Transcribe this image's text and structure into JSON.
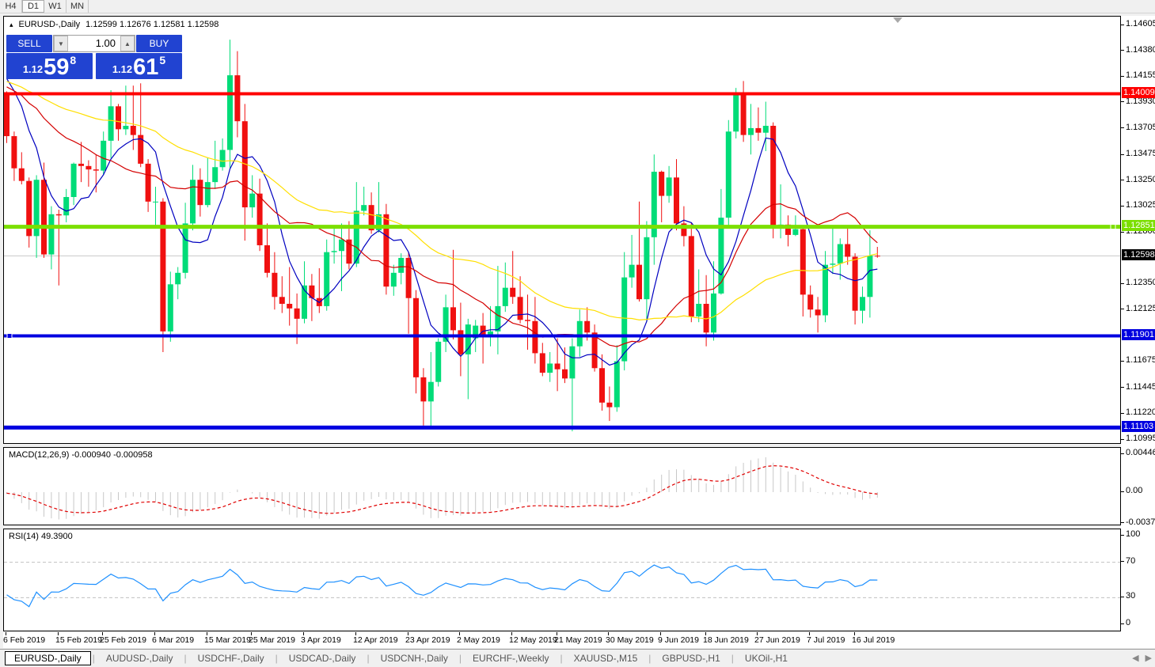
{
  "toolbar": {
    "timeframes": [
      {
        "label": "H4",
        "active": false
      },
      {
        "label": "D1",
        "active": true
      },
      {
        "label": "W1",
        "active": false
      },
      {
        "label": "MN",
        "active": false
      }
    ]
  },
  "chart_header": {
    "collapse_icon": "▴",
    "symbol_period": "EURUSD-,Daily",
    "ohlc_text": "1.12599 1.12676 1.12581 1.12598"
  },
  "trade_panel": {
    "sell_label": "SELL",
    "buy_label": "BUY",
    "volume": "1.00",
    "down_icon": "▼",
    "up_icon": "▲",
    "sell_price": {
      "prefix": "1.12",
      "big": "59",
      "sup": "8"
    },
    "buy_price": {
      "prefix": "1.12",
      "big": "61",
      "sup": "5"
    },
    "accent_color": "#2143D1"
  },
  "indicator_labels": {
    "macd": "MACD(12,26,9) -0.000940 -0.000958",
    "rsi": "RSI(14) 49.3900"
  },
  "price_axis": {
    "labels": [
      "1.14605",
      "1.14380",
      "1.14155",
      "1.13930",
      "1.13705",
      "1.13475",
      "1.13250",
      "1.13025",
      "1.12800",
      "1.12350",
      "1.12125",
      "1.11675",
      "1.11445",
      "1.11220",
      "1.10995"
    ],
    "macd_labels": [
      "0.004465",
      "0.00",
      "-0.003715"
    ],
    "rsi_labels": [
      "100",
      "70",
      "30",
      "0"
    ]
  },
  "date_axis": {
    "labels": [
      {
        "t": "6 Feb 2019",
        "i": 0
      },
      {
        "t": "15 Feb 2019",
        "i": 7
      },
      {
        "t": "25 Feb 2019",
        "i": 13
      },
      {
        "t": "6 Mar 2019",
        "i": 20
      },
      {
        "t": "15 Mar 2019",
        "i": 27
      },
      {
        "t": "25 Mar 2019",
        "i": 33
      },
      {
        "t": "3 Apr 2019",
        "i": 40
      },
      {
        "t": "12 Apr 2019",
        "i": 47
      },
      {
        "t": "23 Apr 2019",
        "i": 54
      },
      {
        "t": "2 May 2019",
        "i": 61
      },
      {
        "t": "12 May 2019",
        "i": 68
      },
      {
        "t": "21 May 2019",
        "i": 74
      },
      {
        "t": "30 May 2019",
        "i": 81
      },
      {
        "t": "9 Jun 2019",
        "i": 88
      },
      {
        "t": "18 Jun 2019",
        "i": 94
      },
      {
        "t": "27 Jun 2019",
        "i": 101
      },
      {
        "t": "7 Jul 2019",
        "i": 108
      },
      {
        "t": "16 Jul 2019",
        "i": 114
      }
    ]
  },
  "tabs": {
    "items": [
      "EURUSD-,Daily",
      "AUDUSD-,Daily",
      "USDCHF-,Daily",
      "USDCAD-,Daily",
      "USDCNH-,Daily",
      "EURCHF-,Weekly",
      "XAUUSD-,M15",
      "GBPUSD-,H1",
      "UKOil-,H1"
    ],
    "active_index": 0,
    "scroll_left_icon": "◀",
    "scroll_right_icon": "▶"
  },
  "chart_data": {
    "type": "candlestick",
    "symbol": "EURUSD-",
    "timeframe": "Daily",
    "title": "EURUSD-,Daily",
    "ohlc_current": {
      "open": 1.12599,
      "high": 1.12676,
      "low": 1.12581,
      "close": 1.12598
    },
    "price_range": {
      "top": 1.14605,
      "bottom": 1.10995
    },
    "up_color": "#00DC78",
    "down_color": "#F01010",
    "current_price": {
      "value": 1.12598,
      "label": "1.12598",
      "line_color": "#C8C8C8",
      "badge_bg": "#000000"
    },
    "hlines": [
      {
        "price": 1.14009,
        "label": "1.14009",
        "color": "#FF0000",
        "width": 4
      },
      {
        "price": 1.12851,
        "label": "1.12851",
        "color": "#7CDF00",
        "width": 5,
        "handle": true
      },
      {
        "price": 1.11901,
        "label": "1.11901",
        "color": "#0000E0",
        "width": 4,
        "handle": true
      },
      {
        "price": 1.11103,
        "label": "1.11103",
        "color": "#0000E0",
        "width": 5
      }
    ],
    "moving_averages": [
      {
        "period": 7,
        "color": "#0000C0"
      },
      {
        "period": 18,
        "color": "#D40000"
      },
      {
        "period": 40,
        "color": "#FFDF00"
      }
    ],
    "macd": {
      "fast": 12,
      "slow": 26,
      "signal": 9,
      "hist_color": "#C8C8C8",
      "signal_color": "#E00000",
      "value": -0.00094,
      "signal_value": -0.000958,
      "scale_top": 0.004465,
      "scale_bottom": -0.003715
    },
    "rsi": {
      "period": 14,
      "color": "#1E90FF",
      "value": 49.39,
      "levels": [
        70,
        30
      ]
    },
    "prehistory_closes": [
      1.1436,
      1.1428,
      1.1432,
      1.1425,
      1.1418,
      1.1422,
      1.143,
      1.1426,
      1.1419,
      1.1412,
      1.1418,
      1.1424,
      1.1416,
      1.1408,
      1.1402,
      1.141,
      1.1416,
      1.1409,
      1.1403,
      1.1398,
      1.1405,
      1.1412,
      1.1407,
      1.1399,
      1.1394,
      1.14,
      1.1408,
      1.1415,
      1.141,
      1.1404,
      1.1398,
      1.1392,
      1.1399,
      1.1406,
      1.1412,
      1.1418,
      1.1425,
      1.1432,
      1.144,
      1.1408
    ],
    "candles": [
      [
        1.1401,
        1.1403,
        1.1358,
        1.1364
      ],
      [
        1.1364,
        1.1368,
        1.1325,
        1.1336
      ],
      [
        1.1336,
        1.135,
        1.1322,
        1.1325
      ],
      [
        1.1325,
        1.1328,
        1.1267,
        1.1277
      ],
      [
        1.1277,
        1.133,
        1.1258,
        1.1326
      ],
      [
        1.1326,
        1.1341,
        1.1258,
        1.1261
      ],
      [
        1.1261,
        1.1303,
        1.1248,
        1.1296
      ],
      [
        1.1296,
        1.13,
        1.1234,
        1.1295
      ],
      [
        1.1295,
        1.1318,
        1.1289,
        1.1311
      ],
      [
        1.1311,
        1.1341,
        1.1304,
        1.134
      ],
      [
        1.134,
        1.1359,
        1.1324,
        1.1338
      ],
      [
        1.1338,
        1.1343,
        1.132,
        1.1335
      ],
      [
        1.1335,
        1.1348,
        1.1315,
        1.1334
      ],
      [
        1.1334,
        1.1368,
        1.133,
        1.136
      ],
      [
        1.136,
        1.1404,
        1.1345,
        1.139
      ],
      [
        1.139,
        1.1392,
        1.136,
        1.137
      ],
      [
        1.137,
        1.1408,
        1.1365,
        1.1373
      ],
      [
        1.1373,
        1.1408,
        1.1352,
        1.1365
      ],
      [
        1.1365,
        1.141,
        1.1337,
        1.134
      ],
      [
        1.134,
        1.1344,
        1.1298,
        1.1307
      ],
      [
        1.1307,
        1.132,
        1.1285,
        1.1307
      ],
      [
        1.1307,
        1.131,
        1.1176,
        1.1194
      ],
      [
        1.1194,
        1.1246,
        1.1185,
        1.1235
      ],
      [
        1.1235,
        1.125,
        1.1222,
        1.1245
      ],
      [
        1.1245,
        1.1306,
        1.124,
        1.1288
      ],
      [
        1.1288,
        1.1339,
        1.1282,
        1.1326
      ],
      [
        1.1326,
        1.1336,
        1.1294,
        1.1304
      ],
      [
        1.1304,
        1.1345,
        1.1302,
        1.1324
      ],
      [
        1.1324,
        1.136,
        1.1318,
        1.1337
      ],
      [
        1.1337,
        1.1362,
        1.1334,
        1.1352
      ],
      [
        1.1352,
        1.1448,
        1.1336,
        1.1417
      ],
      [
        1.1417,
        1.1438,
        1.1363,
        1.1377
      ],
      [
        1.1377,
        1.1392,
        1.1273,
        1.1302
      ],
      [
        1.1302,
        1.133,
        1.1293,
        1.1314
      ],
      [
        1.1314,
        1.1327,
        1.1264,
        1.1269
      ],
      [
        1.1269,
        1.1288,
        1.1241,
        1.1245
      ],
      [
        1.1245,
        1.1263,
        1.1213,
        1.1224
      ],
      [
        1.1224,
        1.1242,
        1.121,
        1.1218
      ],
      [
        1.1218,
        1.125,
        1.1199,
        1.1214
      ],
      [
        1.1214,
        1.1227,
        1.1183,
        1.1205
      ],
      [
        1.1205,
        1.1255,
        1.1201,
        1.1234
      ],
      [
        1.1234,
        1.1244,
        1.1203,
        1.1223
      ],
      [
        1.1223,
        1.1249,
        1.121,
        1.1216
      ],
      [
        1.1216,
        1.1274,
        1.1212,
        1.1263
      ],
      [
        1.1263,
        1.1284,
        1.1253,
        1.1264
      ],
      [
        1.1264,
        1.1288,
        1.1229,
        1.1274
      ],
      [
        1.1274,
        1.129,
        1.1248,
        1.1253
      ],
      [
        1.1253,
        1.1324,
        1.125,
        1.1299
      ],
      [
        1.1299,
        1.132,
        1.1295,
        1.1304
      ],
      [
        1.1304,
        1.1315,
        1.1279,
        1.1282
      ],
      [
        1.1282,
        1.1324,
        1.128,
        1.1296
      ],
      [
        1.1296,
        1.1305,
        1.1226,
        1.1233
      ],
      [
        1.1233,
        1.1252,
        1.1225,
        1.1245
      ],
      [
        1.1245,
        1.1262,
        1.1235,
        1.1258
      ],
      [
        1.1258,
        1.1263,
        1.1192,
        1.1223
      ],
      [
        1.1223,
        1.123,
        1.114,
        1.1154
      ],
      [
        1.1154,
        1.1162,
        1.1112,
        1.1133
      ],
      [
        1.1133,
        1.1176,
        1.1111,
        1.115
      ],
      [
        1.115,
        1.1188,
        1.1146,
        1.1185
      ],
      [
        1.1185,
        1.1226,
        1.1176,
        1.1215
      ],
      [
        1.1215,
        1.1265,
        1.1187,
        1.1195
      ],
      [
        1.1195,
        1.1219,
        1.1155,
        1.1174
      ],
      [
        1.1174,
        1.1205,
        1.1135,
        1.12
      ],
      [
        1.1188,
        1.1204,
        1.1176,
        1.1199
      ],
      [
        1.1199,
        1.121,
        1.1166,
        1.1191
      ],
      [
        1.1191,
        1.1216,
        1.1181,
        1.1194
      ],
      [
        1.1194,
        1.1251,
        1.1174,
        1.1216
      ],
      [
        1.1216,
        1.1254,
        1.1211,
        1.1232
      ],
      [
        1.1232,
        1.1264,
        1.1218,
        1.1224
      ],
      [
        1.1224,
        1.1242,
        1.1201,
        1.1204
      ],
      [
        1.1204,
        1.1226,
        1.1178,
        1.1203
      ],
      [
        1.1203,
        1.1224,
        1.1166,
        1.1175
      ],
      [
        1.1175,
        1.1184,
        1.1155,
        1.1158
      ],
      [
        1.1158,
        1.1176,
        1.115,
        1.1166
      ],
      [
        1.1166,
        1.1188,
        1.1142,
        1.1161
      ],
      [
        1.1161,
        1.118,
        1.1149,
        1.1153
      ],
      [
        1.1153,
        1.1188,
        1.1107,
        1.1181
      ],
      [
        1.1181,
        1.1213,
        1.1172,
        1.1203
      ],
      [
        1.1203,
        1.1215,
        1.1186,
        1.1193
      ],
      [
        1.1193,
        1.12,
        1.1159,
        1.1162
      ],
      [
        1.1162,
        1.1174,
        1.1125,
        1.1132
      ],
      [
        1.1132,
        1.1146,
        1.1116,
        1.1128
      ],
      [
        1.1128,
        1.1182,
        1.1124,
        1.1168
      ],
      [
        1.1168,
        1.1263,
        1.116,
        1.1241
      ],
      [
        1.1241,
        1.1278,
        1.1232,
        1.1252
      ],
      [
        1.1252,
        1.1307,
        1.122,
        1.1222
      ],
      [
        1.1222,
        1.129,
        1.1202,
        1.1276
      ],
      [
        1.1276,
        1.1348,
        1.1252,
        1.1333
      ],
      [
        1.1333,
        1.1334,
        1.1289,
        1.1312
      ],
      [
        1.1312,
        1.1338,
        1.1306,
        1.1328
      ],
      [
        1.1328,
        1.1344,
        1.1282,
        1.1288
      ],
      [
        1.1288,
        1.1303,
        1.1268,
        1.1277
      ],
      [
        1.1277,
        1.1289,
        1.1202,
        1.1207
      ],
      [
        1.1207,
        1.1248,
        1.1202,
        1.1218
      ],
      [
        1.1218,
        1.1243,
        1.1181,
        1.1193
      ],
      [
        1.1193,
        1.1255,
        1.1186,
        1.1227
      ],
      [
        1.1227,
        1.1318,
        1.1226,
        1.1293
      ],
      [
        1.1293,
        1.1378,
        1.1285,
        1.1368
      ],
      [
        1.1368,
        1.1406,
        1.1362,
        1.14
      ],
      [
        1.14,
        1.1412,
        1.1359,
        1.1365
      ],
      [
        1.1365,
        1.1392,
        1.1348,
        1.1371
      ],
      [
        1.1371,
        1.1389,
        1.136,
        1.1367
      ],
      [
        1.1367,
        1.1394,
        1.1351,
        1.1373
      ],
      [
        1.1373,
        1.1376,
        1.1275,
        1.1285
      ],
      [
        1.1285,
        1.1322,
        1.1275,
        1.1287
      ],
      [
        1.1287,
        1.1295,
        1.1268,
        1.1278
      ],
      [
        1.1278,
        1.1295,
        1.1277,
        1.1283
      ],
      [
        1.1283,
        1.1286,
        1.1207,
        1.1226
      ],
      [
        1.1226,
        1.1234,
        1.1206,
        1.1213
      ],
      [
        1.1213,
        1.1224,
        1.1193,
        1.1208
      ],
      [
        1.1208,
        1.1264,
        1.1202,
        1.1252
      ],
      [
        1.1252,
        1.1286,
        1.1244,
        1.1253
      ],
      [
        1.1253,
        1.1275,
        1.1239,
        1.127
      ],
      [
        1.127,
        1.1285,
        1.1252,
        1.1259
      ],
      [
        1.1259,
        1.1262,
        1.12,
        1.1212
      ],
      [
        1.1212,
        1.1233,
        1.1201,
        1.1224
      ],
      [
        1.1224,
        1.1282,
        1.1206,
        1.126
      ],
      [
        1.12599,
        1.12676,
        1.12581,
        1.12598
      ]
    ]
  }
}
